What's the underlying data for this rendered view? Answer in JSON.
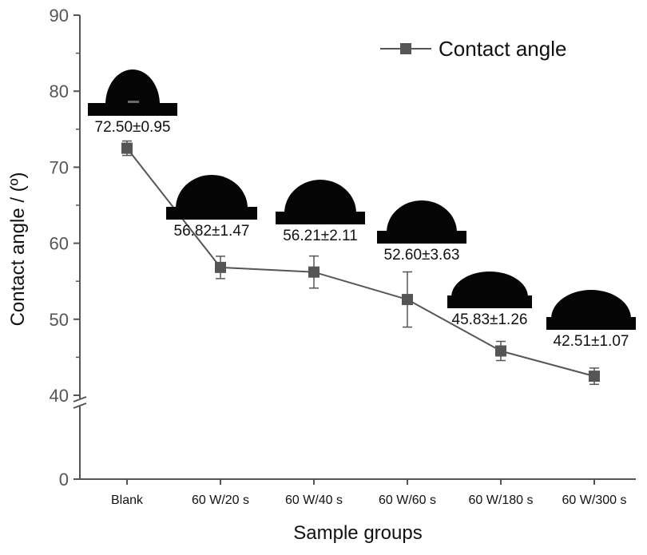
{
  "chart_data": {
    "type": "line",
    "title": "",
    "xlabel": "Sample groups",
    "ylabel": "Contact angle / (º)",
    "categories": [
      "Blank",
      "60 W/20 s",
      "60 W/40 s",
      "60 W/60 s",
      "60 W/180 s",
      "60 W/300 s"
    ],
    "series": [
      {
        "name": "Contact angle",
        "values": [
          72.5,
          56.82,
          56.21,
          52.6,
          45.83,
          42.51
        ],
        "errors": [
          0.95,
          1.47,
          2.11,
          3.63,
          1.26,
          1.07
        ],
        "labels": [
          "72.50±0.95",
          "56.82±1.47",
          "56.21±2.11",
          "52.60±3.63",
          "45.83±1.26",
          "42.51±1.07"
        ],
        "color": "#555555",
        "marker": "square"
      }
    ],
    "ylim": [
      0,
      90
    ],
    "yticks": [
      0,
      40,
      50,
      60,
      70,
      80,
      90
    ],
    "axis_break": [
      0,
      40
    ],
    "legend": "top-right",
    "grid": false,
    "droplet_images": true
  }
}
